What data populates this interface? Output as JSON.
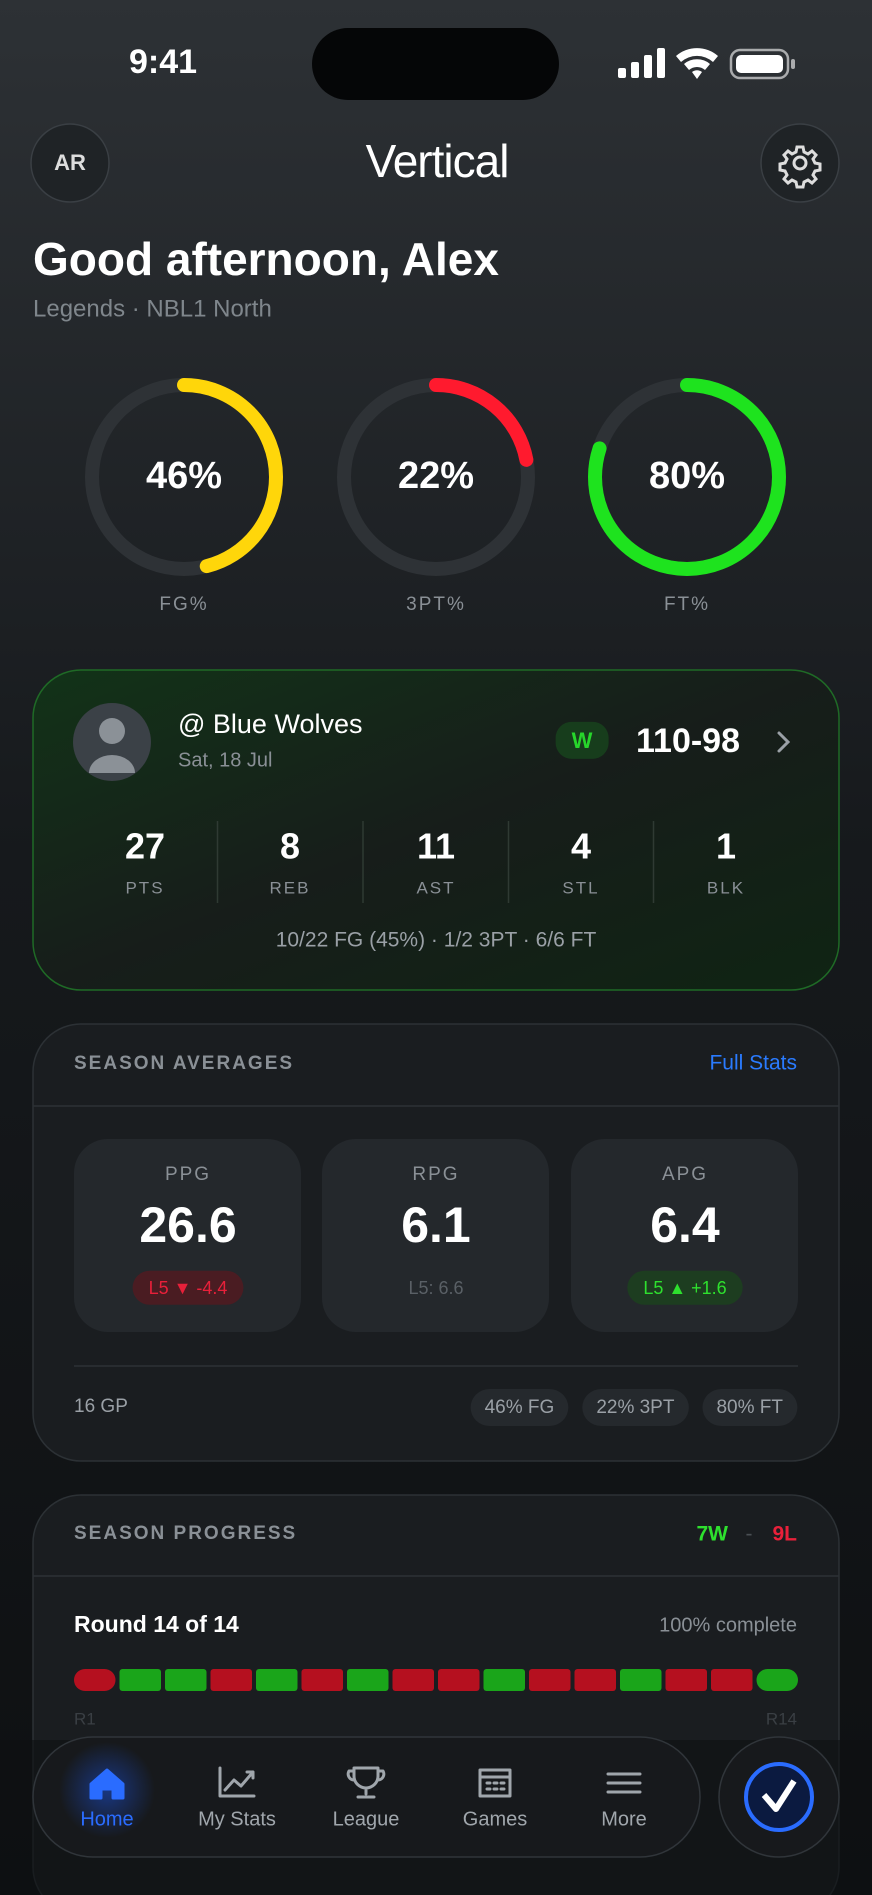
{
  "status": {
    "time": "9:41"
  },
  "header": {
    "avatar": "AR",
    "brand": "Vertical"
  },
  "greeting": {
    "title": "Good afternoon, Alex",
    "subtitle": "Legends · NBL1 North"
  },
  "rings": [
    {
      "label": "FG%",
      "value": 46,
      "value_label": "46%",
      "color": "#ffd60a"
    },
    {
      "label": "3PT%",
      "value": 22,
      "value_label": "22%",
      "color": "#ff1a2e"
    },
    {
      "label": "FT%",
      "value": 80,
      "value_label": "80%",
      "color": "#1ee31e"
    }
  ],
  "last_game": {
    "opponent": "@ Blue Wolves",
    "date": "Sat, 18 Jul",
    "result": "W",
    "score": "110-98",
    "stats": [
      {
        "value": 27,
        "label": "PTS"
      },
      {
        "value": 8,
        "label": "REB"
      },
      {
        "value": 11,
        "label": "AST"
      },
      {
        "value": 4,
        "label": "STL"
      },
      {
        "value": 1,
        "label": "BLK"
      }
    ],
    "summary": "10/22 FG (45%) · 1/2 3PT · 6/6 FT"
  },
  "season_averages": {
    "title": "SEASON AVERAGES",
    "link": "Full Stats",
    "cards": [
      {
        "label": "PPG",
        "value": 26.6,
        "trend": "L5 ▼ -4.4",
        "trend_type": "down"
      },
      {
        "label": "RPG",
        "value": 6.1,
        "trend": "L5: 6.6",
        "trend_type": "neutral"
      },
      {
        "label": "APG",
        "value": 6.4,
        "trend": "L5 ▲ +1.6",
        "trend_type": "up"
      }
    ],
    "games": "16 GP",
    "chips": [
      "46% FG",
      "22% 3PT",
      "80% FT"
    ]
  },
  "season_progress": {
    "title": "SEASON PROGRESS",
    "wins": "7W",
    "separator": "-",
    "losses": "9L",
    "round": "Round 14 of 14",
    "complete": "100% complete",
    "results": [
      "loss",
      "win",
      "win",
      "loss",
      "win",
      "loss",
      "win",
      "loss",
      "loss",
      "win",
      "loss",
      "loss",
      "win",
      "loss",
      "loss",
      "win"
    ],
    "start": "R1",
    "end": "R14"
  },
  "nav": {
    "items": [
      {
        "label": "Home",
        "active": true
      },
      {
        "label": "My Stats",
        "active": false
      },
      {
        "label": "League",
        "active": false
      },
      {
        "label": "Games",
        "active": false
      },
      {
        "label": "More",
        "active": false
      }
    ]
  }
}
